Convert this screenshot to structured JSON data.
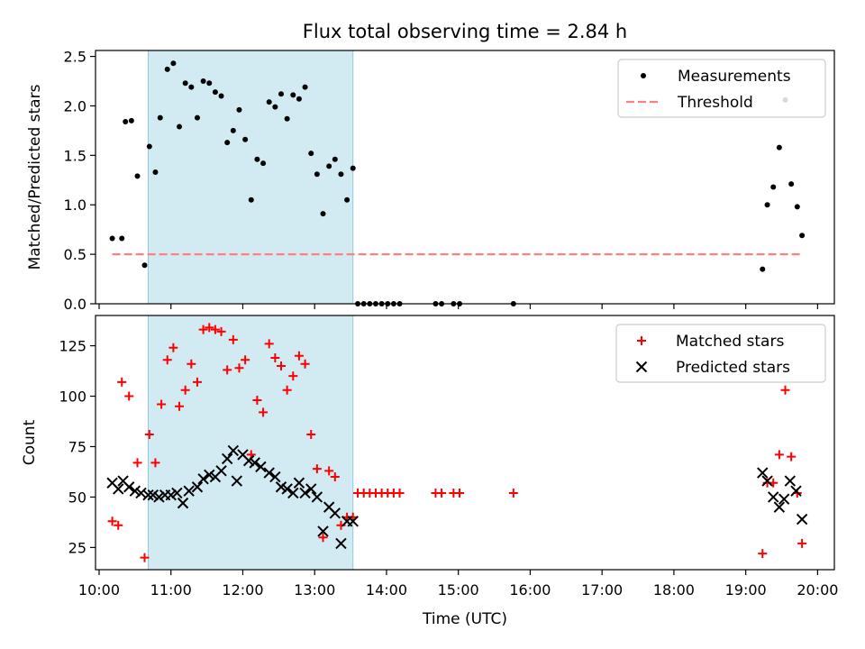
{
  "chart_data": {
    "title": "Flux total observing time = 2.84 h",
    "xlabel": "Time (UTC)",
    "x_range": [
      "09:57",
      "20:14"
    ],
    "x_ticks": [
      "10:00",
      "11:00",
      "12:00",
      "13:00",
      "14:00",
      "15:00",
      "16:00",
      "17:00",
      "18:00",
      "19:00",
      "20:00"
    ],
    "highlight_span": {
      "start": "10:41",
      "end": "13:32",
      "color": "#add8e6"
    },
    "panels": [
      {
        "type": "scatter",
        "ylabel": "Matched/Predicted stars",
        "ylim": [
          0,
          2.56
        ],
        "y_ticks": [
          "0.0",
          "0.5",
          "1.0",
          "1.5",
          "2.0",
          "2.5"
        ],
        "legend_position": "top-right",
        "series": [
          {
            "name": "Measurements",
            "marker": "dot",
            "color": "#000000",
            "points": [
              [
                "10:11",
                0.66
              ],
              [
                "10:19",
                0.66
              ],
              [
                "10:22",
                1.84
              ],
              [
                "10:27",
                1.85
              ],
              [
                "10:32",
                1.29
              ],
              [
                "10:38",
                0.39
              ],
              [
                "10:42",
                1.59
              ],
              [
                "10:47",
                1.33
              ],
              [
                "10:51",
                1.88
              ],
              [
                "10:57",
                2.37
              ],
              [
                "11:02",
                2.43
              ],
              [
                "11:07",
                1.79
              ],
              [
                "11:12",
                2.23
              ],
              [
                "11:17",
                2.19
              ],
              [
                "11:22",
                1.88
              ],
              [
                "11:27",
                2.25
              ],
              [
                "11:32",
                2.23
              ],
              [
                "11:37",
                2.14
              ],
              [
                "11:42",
                2.1
              ],
              [
                "11:47",
                1.63
              ],
              [
                "11:52",
                1.75
              ],
              [
                "11:57",
                1.96
              ],
              [
                "12:02",
                1.66
              ],
              [
                "12:07",
                1.05
              ],
              [
                "12:12",
                1.46
              ],
              [
                "12:17",
                1.42
              ],
              [
                "12:22",
                2.04
              ],
              [
                "12:27",
                1.99
              ],
              [
                "12:32",
                2.12
              ],
              [
                "12:37",
                1.87
              ],
              [
                "12:42",
                2.11
              ],
              [
                "12:47",
                2.07
              ],
              [
                "12:52",
                2.19
              ],
              [
                "12:57",
                1.52
              ],
              [
                "13:02",
                1.31
              ],
              [
                "13:07",
                0.91
              ],
              [
                "13:12",
                1.39
              ],
              [
                "13:17",
                1.46
              ],
              [
                "13:22",
                1.31
              ],
              [
                "13:27",
                1.05
              ],
              [
                "13:32",
                1.37
              ],
              [
                "13:36",
                0.0
              ],
              [
                "13:41",
                0.0
              ],
              [
                "13:46",
                0.0
              ],
              [
                "13:51",
                0.0
              ],
              [
                "13:56",
                0.0
              ],
              [
                "14:01",
                0.0
              ],
              [
                "14:06",
                0.0
              ],
              [
                "14:11",
                0.0
              ],
              [
                "14:41",
                0.0
              ],
              [
                "14:46",
                0.0
              ],
              [
                "14:56",
                0.0
              ],
              [
                "15:01",
                0.0
              ],
              [
                "15:46",
                0.0
              ],
              [
                "19:14",
                0.35
              ],
              [
                "19:18",
                1.0
              ],
              [
                "19:23",
                1.18
              ],
              [
                "19:28",
                1.58
              ],
              [
                "19:33",
                2.06
              ],
              [
                "19:38",
                1.21
              ],
              [
                "19:43",
                0.98
              ],
              [
                "19:47",
                0.69
              ]
            ]
          },
          {
            "name": "Threshold",
            "marker": "dashed-line",
            "color": "#ff8080",
            "points": [
              [
                "10:11",
                0.5
              ],
              [
                "19:47",
                0.5
              ]
            ]
          }
        ]
      },
      {
        "type": "scatter",
        "ylabel": "Count",
        "ylim": [
          14,
          140
        ],
        "y_ticks": [
          "25",
          "50",
          "75",
          "100",
          "125"
        ],
        "legend_position": "top-right",
        "series": [
          {
            "name": "Matched stars",
            "marker": "plus",
            "color": "#ff0000",
            "points": [
              [
                "10:11",
                38
              ],
              [
                "10:16",
                36
              ],
              [
                "10:19",
                107
              ],
              [
                "10:25",
                100
              ],
              [
                "10:32",
                67
              ],
              [
                "10:38",
                20
              ],
              [
                "10:42",
                81
              ],
              [
                "10:47",
                67
              ],
              [
                "10:52",
                96
              ],
              [
                "10:57",
                118
              ],
              [
                "11:02",
                124
              ],
              [
                "11:07",
                95
              ],
              [
                "11:12",
                103
              ],
              [
                "11:17",
                116
              ],
              [
                "11:22",
                107
              ],
              [
                "11:27",
                133
              ],
              [
                "11:32",
                134
              ],
              [
                "11:37",
                133
              ],
              [
                "11:42",
                132
              ],
              [
                "11:47",
                113
              ],
              [
                "11:52",
                128
              ],
              [
                "11:57",
                114
              ],
              [
                "12:02",
                118
              ],
              [
                "12:07",
                71
              ],
              [
                "12:12",
                98
              ],
              [
                "12:17",
                92
              ],
              [
                "12:22",
                126
              ],
              [
                "12:27",
                119
              ],
              [
                "12:32",
                115
              ],
              [
                "12:37",
                103
              ],
              [
                "12:42",
                110
              ],
              [
                "12:47",
                120
              ],
              [
                "12:52",
                116
              ],
              [
                "12:57",
                81
              ],
              [
                "13:02",
                64
              ],
              [
                "13:07",
                30
              ],
              [
                "13:12",
                63
              ],
              [
                "13:17",
                60
              ],
              [
                "13:22",
                36
              ],
              [
                "13:27",
                40
              ],
              [
                "13:32",
                40
              ],
              [
                "13:36",
                52
              ],
              [
                "13:41",
                52
              ],
              [
                "13:46",
                52
              ],
              [
                "13:51",
                52
              ],
              [
                "13:56",
                52
              ],
              [
                "14:01",
                52
              ],
              [
                "14:06",
                52
              ],
              [
                "14:11",
                52
              ],
              [
                "14:41",
                52
              ],
              [
                "14:46",
                52
              ],
              [
                "14:56",
                52
              ],
              [
                "15:01",
                52
              ],
              [
                "15:46",
                52
              ],
              [
                "19:14",
                22
              ],
              [
                "19:18",
                57
              ],
              [
                "19:23",
                57
              ],
              [
                "19:28",
                71
              ],
              [
                "19:33",
                103
              ],
              [
                "19:38",
                70
              ],
              [
                "19:43",
                52
              ],
              [
                "19:47",
                27
              ]
            ]
          },
          {
            "name": "Predicted stars",
            "marker": "x",
            "color": "#000000",
            "points": [
              [
                "10:11",
                57
              ],
              [
                "10:16",
                54
              ],
              [
                "10:20",
                58
              ],
              [
                "10:25",
                55
              ],
              [
                "10:30",
                53
              ],
              [
                "10:35",
                52
              ],
              [
                "10:41",
                51
              ],
              [
                "10:45",
                51
              ],
              [
                "10:50",
                50
              ],
              [
                "10:55",
                51
              ],
              [
                "11:00",
                51
              ],
              [
                "11:05",
                52
              ],
              [
                "11:10",
                47
              ],
              [
                "11:15",
                53
              ],
              [
                "11:22",
                55
              ],
              [
                "11:27",
                59
              ],
              [
                "11:32",
                61
              ],
              [
                "11:37",
                60
              ],
              [
                "11:42",
                63
              ],
              [
                "11:47",
                69
              ],
              [
                "11:52",
                73
              ],
              [
                "11:55",
                58
              ],
              [
                "12:00",
                71
              ],
              [
                "12:05",
                68
              ],
              [
                "12:10",
                67
              ],
              [
                "12:15",
                65
              ],
              [
                "12:22",
                62
              ],
              [
                "12:27",
                60
              ],
              [
                "12:32",
                55
              ],
              [
                "12:37",
                54
              ],
              [
                "12:42",
                52
              ],
              [
                "12:47",
                57
              ],
              [
                "12:52",
                52
              ],
              [
                "12:57",
                54
              ],
              [
                "13:02",
                50
              ],
              [
                "13:07",
                33
              ],
              [
                "13:12",
                45
              ],
              [
                "13:17",
                42
              ],
              [
                "13:22",
                27
              ],
              [
                "13:27",
                38
              ],
              [
                "13:32",
                38
              ],
              [
                "19:14",
                62
              ],
              [
                "19:18",
                58
              ],
              [
                "19:23",
                50
              ],
              [
                "19:28",
                45
              ],
              [
                "19:32",
                49
              ],
              [
                "19:37",
                58
              ],
              [
                "19:42",
                53
              ],
              [
                "19:47",
                39
              ]
            ]
          }
        ]
      }
    ]
  }
}
